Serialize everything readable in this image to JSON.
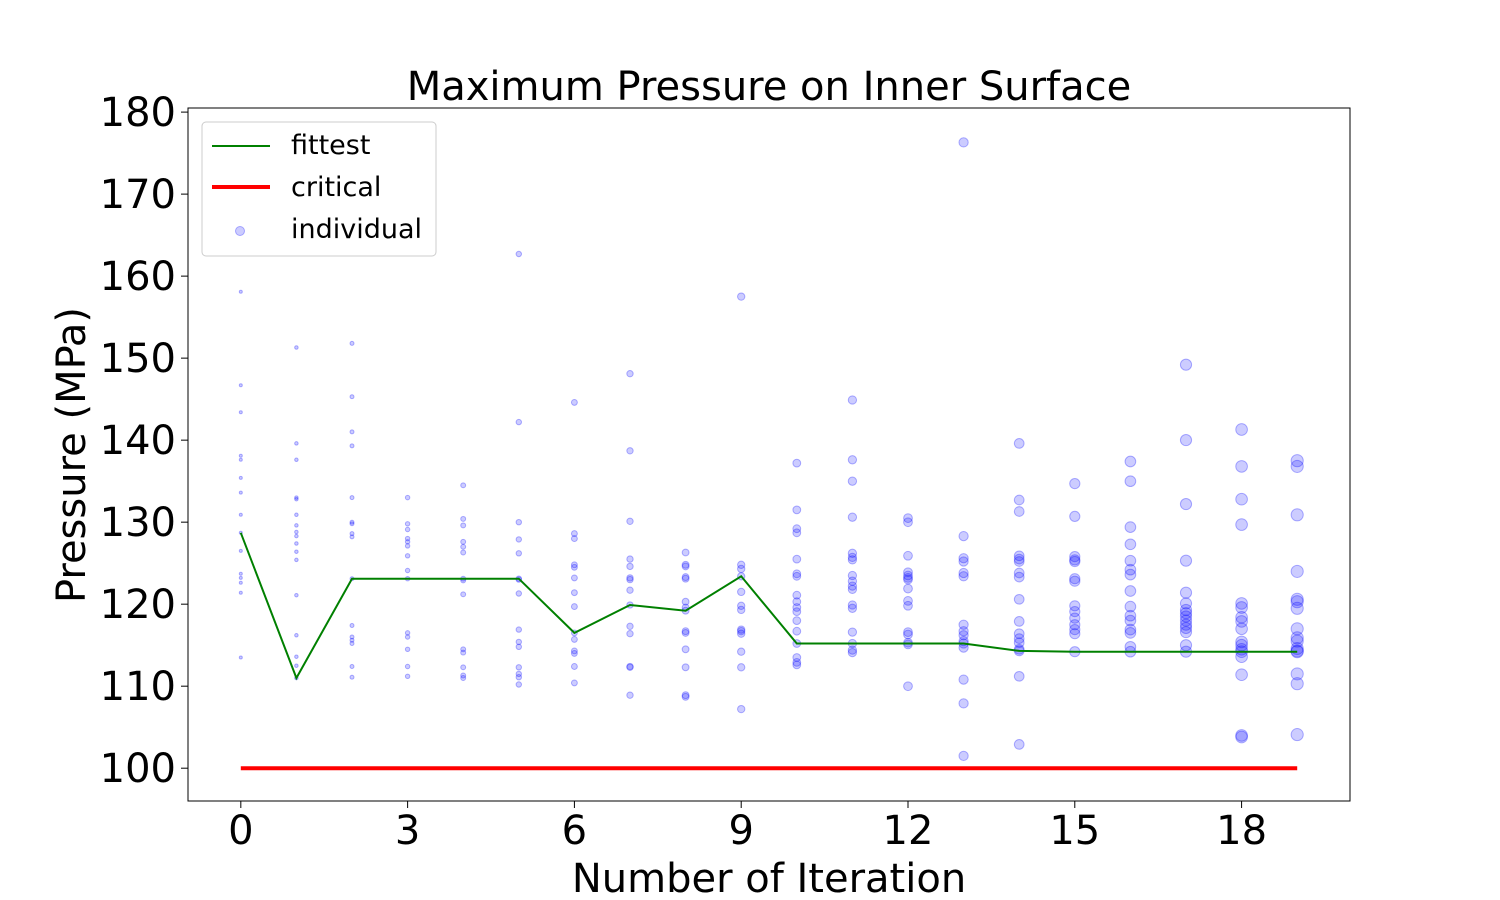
{
  "colors": {
    "fittest": "#008000",
    "critical": "#ff0000",
    "individual": "#0000ff",
    "axes": "#000000",
    "legend_border": "#cccccc"
  },
  "chart_data": {
    "type": "scatter",
    "title": "Maximum Pressure on Inner Surface",
    "xlabel": "Number of Iteration",
    "ylabel": "Pressure (MPa)",
    "xlim": [
      -0.95,
      19.95
    ],
    "ylim": [
      96,
      180.5
    ],
    "xticks": [
      0,
      3,
      6,
      9,
      12,
      15,
      18
    ],
    "yticks": [
      100,
      110,
      120,
      130,
      140,
      150,
      160,
      170,
      180
    ],
    "grid": false,
    "legend_position": "top-left",
    "legend": [
      "fittest",
      "critical",
      "individual"
    ],
    "series": [
      {
        "name": "fittest",
        "kind": "line",
        "x": [
          0,
          1,
          2,
          3,
          4,
          5,
          6,
          7,
          8,
          9,
          10,
          11,
          12,
          13,
          14,
          15,
          16,
          17,
          18,
          19
        ],
        "y": [
          128.7,
          111.0,
          123.1,
          123.1,
          123.1,
          123.1,
          116.5,
          119.9,
          119.2,
          123.4,
          115.2,
          115.2,
          115.2,
          115.2,
          114.3,
          114.2,
          114.2,
          114.2,
          114.2,
          114.2
        ]
      },
      {
        "name": "critical",
        "kind": "line",
        "x": [
          0,
          19
        ],
        "y": [
          100,
          100
        ]
      },
      {
        "name": "individual",
        "kind": "scatter",
        "points": [
          [
            0,
            158.1
          ],
          [
            0,
            146.7
          ],
          [
            0,
            143.4
          ],
          [
            0,
            138.1
          ],
          [
            0,
            137.6
          ],
          [
            0,
            135.4
          ],
          [
            0,
            133.6
          ],
          [
            0,
            130.9
          ],
          [
            0,
            128.7
          ],
          [
            0,
            126.5
          ],
          [
            0,
            123.7
          ],
          [
            0,
            123.2
          ],
          [
            0,
            122.6
          ],
          [
            0,
            121.4
          ],
          [
            0,
            113.5
          ],
          [
            1,
            151.3
          ],
          [
            1,
            139.6
          ],
          [
            1,
            137.6
          ],
          [
            1,
            133.0
          ],
          [
            1,
            132.8
          ],
          [
            1,
            130.9
          ],
          [
            1,
            129.6
          ],
          [
            1,
            128.8
          ],
          [
            1,
            128.3
          ],
          [
            1,
            127.4
          ],
          [
            1,
            126.4
          ],
          [
            1,
            125.4
          ],
          [
            1,
            121.1
          ],
          [
            1,
            116.2
          ],
          [
            1,
            113.6
          ],
          [
            1,
            112.5
          ],
          [
            1,
            111.0
          ],
          [
            2,
            151.8
          ],
          [
            2,
            145.3
          ],
          [
            2,
            141.0
          ],
          [
            2,
            139.3
          ],
          [
            2,
            133.0
          ],
          [
            2,
            130.0
          ],
          [
            2,
            129.8
          ],
          [
            2,
            128.6
          ],
          [
            2,
            128.2
          ],
          [
            2,
            123.1
          ],
          [
            2,
            117.4
          ],
          [
            2,
            116.0
          ],
          [
            2,
            115.6
          ],
          [
            2,
            115.2
          ],
          [
            2,
            112.4
          ],
          [
            2,
            111.1
          ],
          [
            3,
            133.0
          ],
          [
            3,
            129.8
          ],
          [
            3,
            129.1
          ],
          [
            3,
            128.0
          ],
          [
            3,
            127.6
          ],
          [
            3,
            127.1
          ],
          [
            3,
            125.9
          ],
          [
            3,
            124.1
          ],
          [
            3,
            123.1
          ],
          [
            3,
            116.5
          ],
          [
            3,
            116.0
          ],
          [
            3,
            114.5
          ],
          [
            3,
            112.4
          ],
          [
            3,
            111.2
          ],
          [
            4,
            134.5
          ],
          [
            4,
            130.4
          ],
          [
            4,
            129.6
          ],
          [
            4,
            127.6
          ],
          [
            4,
            127.0
          ],
          [
            4,
            126.3
          ],
          [
            4,
            123.1
          ],
          [
            4,
            122.9
          ],
          [
            4,
            121.2
          ],
          [
            4,
            114.5
          ],
          [
            4,
            114.1
          ],
          [
            4,
            112.3
          ],
          [
            4,
            111.3
          ],
          [
            4,
            111.0
          ],
          [
            5,
            162.7
          ],
          [
            5,
            142.2
          ],
          [
            5,
            130.0
          ],
          [
            5,
            127.9
          ],
          [
            5,
            126.2
          ],
          [
            5,
            123.1
          ],
          [
            5,
            123.0
          ],
          [
            5,
            121.3
          ],
          [
            5,
            116.9
          ],
          [
            5,
            115.4
          ],
          [
            5,
            114.8
          ],
          [
            5,
            112.3
          ],
          [
            5,
            111.5
          ],
          [
            5,
            111.1
          ],
          [
            5,
            110.2
          ],
          [
            6,
            144.6
          ],
          [
            6,
            128.6
          ],
          [
            6,
            128.0
          ],
          [
            6,
            124.8
          ],
          [
            6,
            124.5
          ],
          [
            6,
            123.2
          ],
          [
            6,
            121.4
          ],
          [
            6,
            119.7
          ],
          [
            6,
            116.5
          ],
          [
            6,
            115.7
          ],
          [
            6,
            114.3
          ],
          [
            6,
            114.0
          ],
          [
            6,
            112.4
          ],
          [
            6,
            110.4
          ],
          [
            7,
            148.1
          ],
          [
            7,
            138.7
          ],
          [
            7,
            130.1
          ],
          [
            7,
            125.5
          ],
          [
            7,
            124.6
          ],
          [
            7,
            123.2
          ],
          [
            7,
            123.0
          ],
          [
            7,
            121.7
          ],
          [
            7,
            119.9
          ],
          [
            7,
            117.3
          ],
          [
            7,
            116.4
          ],
          [
            7,
            112.4
          ],
          [
            7,
            112.3
          ],
          [
            7,
            108.9
          ],
          [
            8,
            126.3
          ],
          [
            8,
            124.8
          ],
          [
            8,
            124.6
          ],
          [
            8,
            123.3
          ],
          [
            8,
            123.1
          ],
          [
            8,
            120.3
          ],
          [
            8,
            119.6
          ],
          [
            8,
            119.2
          ],
          [
            8,
            116.7
          ],
          [
            8,
            116.5
          ],
          [
            8,
            114.5
          ],
          [
            8,
            112.3
          ],
          [
            8,
            108.9
          ],
          [
            8,
            108.7
          ],
          [
            9,
            157.5
          ],
          [
            9,
            124.8
          ],
          [
            9,
            124.3
          ],
          [
            9,
            123.4
          ],
          [
            9,
            121.5
          ],
          [
            9,
            119.8
          ],
          [
            9,
            119.3
          ],
          [
            9,
            116.9
          ],
          [
            9,
            116.7
          ],
          [
            9,
            116.4
          ],
          [
            9,
            114.2
          ],
          [
            9,
            112.3
          ],
          [
            9,
            107.2
          ],
          [
            10,
            137.2
          ],
          [
            10,
            131.5
          ],
          [
            10,
            129.2
          ],
          [
            10,
            128.7
          ],
          [
            10,
            125.5
          ],
          [
            10,
            123.7
          ],
          [
            10,
            123.4
          ],
          [
            10,
            121.1
          ],
          [
            10,
            120.3
          ],
          [
            10,
            119.6
          ],
          [
            10,
            119.1
          ],
          [
            10,
            118.0
          ],
          [
            10,
            116.7
          ],
          [
            10,
            115.2
          ],
          [
            10,
            113.5
          ],
          [
            10,
            112.9
          ],
          [
            10,
            112.6
          ],
          [
            11,
            144.9
          ],
          [
            11,
            137.6
          ],
          [
            11,
            135.0
          ],
          [
            11,
            130.6
          ],
          [
            11,
            126.2
          ],
          [
            11,
            125.7
          ],
          [
            11,
            125.4
          ],
          [
            11,
            123.5
          ],
          [
            11,
            122.8
          ],
          [
            11,
            122.2
          ],
          [
            11,
            121.8
          ],
          [
            11,
            119.9
          ],
          [
            11,
            119.5
          ],
          [
            11,
            116.6
          ],
          [
            11,
            115.2
          ],
          [
            11,
            114.4
          ],
          [
            11,
            114.1
          ],
          [
            12,
            130.5
          ],
          [
            12,
            130.0
          ],
          [
            12,
            125.9
          ],
          [
            12,
            123.9
          ],
          [
            12,
            123.5
          ],
          [
            12,
            123.2
          ],
          [
            12,
            123.0
          ],
          [
            12,
            121.9
          ],
          [
            12,
            120.4
          ],
          [
            12,
            119.8
          ],
          [
            12,
            116.6
          ],
          [
            12,
            116.3
          ],
          [
            12,
            115.3
          ],
          [
            12,
            115.1
          ],
          [
            12,
            110.0
          ],
          [
            13,
            176.3
          ],
          [
            13,
            128.3
          ],
          [
            13,
            125.6
          ],
          [
            13,
            125.2
          ],
          [
            13,
            123.8
          ],
          [
            13,
            123.4
          ],
          [
            13,
            117.5
          ],
          [
            13,
            116.7
          ],
          [
            13,
            116.2
          ],
          [
            13,
            115.5
          ],
          [
            13,
            115.2
          ],
          [
            13,
            114.7
          ],
          [
            13,
            110.8
          ],
          [
            13,
            107.9
          ],
          [
            13,
            101.5
          ],
          [
            14,
            139.6
          ],
          [
            14,
            132.7
          ],
          [
            14,
            131.3
          ],
          [
            14,
            125.9
          ],
          [
            14,
            125.5
          ],
          [
            14,
            125.2
          ],
          [
            14,
            123.8
          ],
          [
            14,
            123.3
          ],
          [
            14,
            120.6
          ],
          [
            14,
            117.9
          ],
          [
            14,
            116.4
          ],
          [
            14,
            115.8
          ],
          [
            14,
            115.3
          ],
          [
            14,
            114.5
          ],
          [
            14,
            114.3
          ],
          [
            14,
            111.2
          ],
          [
            14,
            102.9
          ],
          [
            15,
            134.7
          ],
          [
            15,
            130.7
          ],
          [
            15,
            125.8
          ],
          [
            15,
            125.4
          ],
          [
            15,
            125.2
          ],
          [
            15,
            123.1
          ],
          [
            15,
            122.8
          ],
          [
            15,
            119.8
          ],
          [
            15,
            119.1
          ],
          [
            15,
            118.3
          ],
          [
            15,
            117.5
          ],
          [
            15,
            116.9
          ],
          [
            15,
            116.4
          ],
          [
            15,
            114.2
          ],
          [
            16,
            137.4
          ],
          [
            16,
            135.0
          ],
          [
            16,
            129.4
          ],
          [
            16,
            127.3
          ],
          [
            16,
            125.3
          ],
          [
            16,
            124.2
          ],
          [
            16,
            123.6
          ],
          [
            16,
            121.6
          ],
          [
            16,
            119.7
          ],
          [
            16,
            118.6
          ],
          [
            16,
            118.0
          ],
          [
            16,
            116.9
          ],
          [
            16,
            116.5
          ],
          [
            16,
            114.8
          ],
          [
            16,
            114.2
          ],
          [
            17,
            149.2
          ],
          [
            17,
            140.0
          ],
          [
            17,
            132.2
          ],
          [
            17,
            125.3
          ],
          [
            17,
            121.4
          ],
          [
            17,
            120.1
          ],
          [
            17,
            119.3
          ],
          [
            17,
            118.9
          ],
          [
            17,
            118.5
          ],
          [
            17,
            118.0
          ],
          [
            17,
            117.5
          ],
          [
            17,
            117.1
          ],
          [
            17,
            116.6
          ],
          [
            17,
            115.0
          ],
          [
            17,
            114.2
          ],
          [
            18,
            141.3
          ],
          [
            18,
            136.8
          ],
          [
            18,
            132.8
          ],
          [
            18,
            129.7
          ],
          [
            18,
            120.1
          ],
          [
            18,
            119.6
          ],
          [
            18,
            118.4
          ],
          [
            18,
            117.9
          ],
          [
            18,
            117.0
          ],
          [
            18,
            115.4
          ],
          [
            18,
            115.0
          ],
          [
            18,
            114.5
          ],
          [
            18,
            114.2
          ],
          [
            18,
            113.6
          ],
          [
            18,
            111.4
          ],
          [
            18,
            104.0
          ],
          [
            18,
            103.8
          ],
          [
            19,
            137.5
          ],
          [
            19,
            136.8
          ],
          [
            19,
            130.9
          ],
          [
            19,
            124.0
          ],
          [
            19,
            120.6
          ],
          [
            19,
            120.3
          ],
          [
            19,
            119.5
          ],
          [
            19,
            117.0
          ],
          [
            19,
            115.9
          ],
          [
            19,
            115.5
          ],
          [
            19,
            114.6
          ],
          [
            19,
            114.3
          ],
          [
            19,
            114.2
          ],
          [
            19,
            111.5
          ],
          [
            19,
            110.3
          ],
          [
            19,
            104.1
          ]
        ]
      }
    ]
  }
}
